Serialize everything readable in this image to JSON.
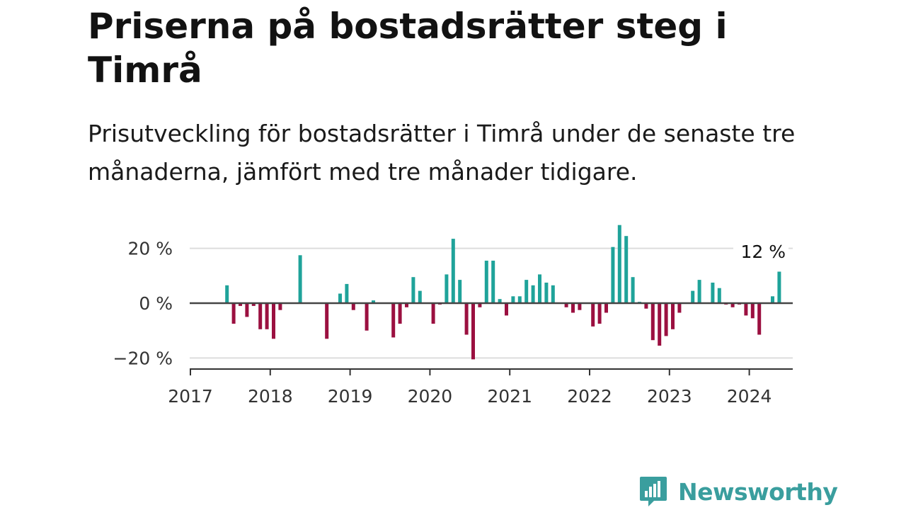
{
  "header": {
    "title": "Priserna på bostadsrätter steg i Timrå",
    "subtitle": "Prisutveckling för bostadsrätter i Timrå under de senaste tre månaderna, jämfört med tre månader tidigare."
  },
  "chart_data": {
    "type": "bar",
    "title": "",
    "xlabel": "",
    "ylabel": "",
    "ylim": [
      -22,
      30
    ],
    "x_range": [
      2017.0,
      2024.6
    ],
    "x_ticks": [
      {
        "value": 2017,
        "label": "2017"
      },
      {
        "value": 2018,
        "label": "2018"
      },
      {
        "value": 2019,
        "label": "2019"
      },
      {
        "value": 2020,
        "label": "2020"
      },
      {
        "value": 2021,
        "label": "2021"
      },
      {
        "value": 2022,
        "label": "2022"
      },
      {
        "value": 2023,
        "label": "2023"
      },
      {
        "value": 2024,
        "label": "2024"
      }
    ],
    "y_ticks": [
      {
        "value": 20,
        "label": "20 %"
      },
      {
        "value": 0,
        "label": "0 %"
      },
      {
        "value": -20,
        "label": "−20 %"
      }
    ],
    "grid": true,
    "positive_color": "#1fa39a",
    "negative_color": "#9b1040",
    "start": "2017-06",
    "values": [
      6.5,
      -7.5,
      -1,
      -5,
      -1,
      -9.5,
      -9.5,
      -13,
      -2.5,
      0,
      0,
      17.5,
      0,
      0,
      0,
      -13,
      0,
      3.5,
      7,
      -2.5,
      0,
      -10,
      1,
      0,
      0,
      -12.5,
      -7.5,
      -1.5,
      9.5,
      4.5,
      0,
      -7.5,
      -0.5,
      10.5,
      23.5,
      8.5,
      -11.5,
      -20.5,
      -1.5,
      15.5,
      15.5,
      1.5,
      -4.5,
      2.5,
      2.5,
      8.5,
      6.5,
      10.5,
      7.5,
      6.5,
      0,
      -1.5,
      -3.5,
      -2.5,
      0,
      -8.5,
      -7.5,
      -3.5,
      20.5,
      28.5,
      24.5,
      9.5,
      0.5,
      -2,
      -13.5,
      -15.5,
      -12,
      -9.5,
      -3.5,
      0,
      4.5,
      8.5,
      0,
      7.5,
      5.5,
      -0.5,
      -1.5,
      -0.5,
      -4.5,
      -5.5,
      -11.5,
      0,
      2.5,
      11.5
    ],
    "annotation": {
      "label": "12 %",
      "value": 12
    }
  },
  "branding": {
    "name": "Newsworthy",
    "color": "#3a9e9e"
  }
}
